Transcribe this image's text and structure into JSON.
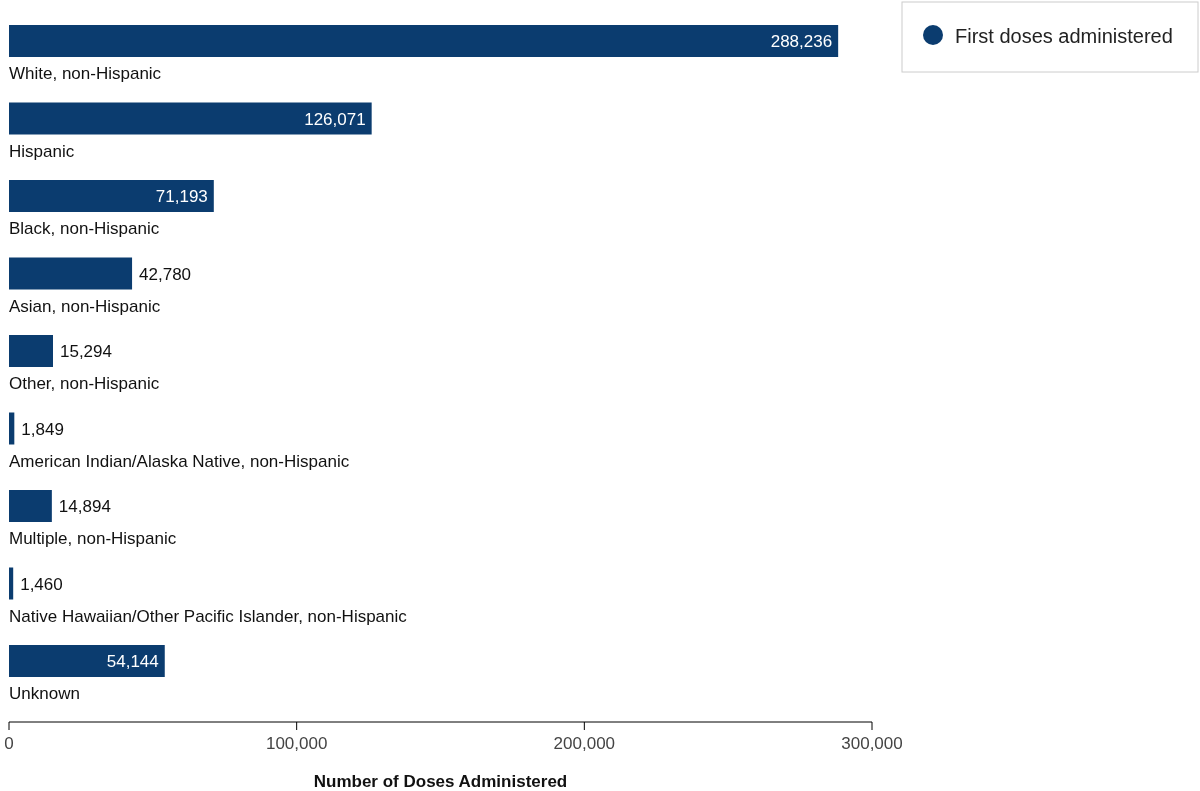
{
  "chart_data": {
    "type": "bar",
    "orientation": "horizontal",
    "xlabel": "Number of Doses Administered",
    "categories": [
      "White, non-Hispanic",
      "Hispanic",
      "Black, non-Hispanic",
      "Asian, non-Hispanic",
      "Other, non-Hispanic",
      "American Indian/Alaska Native, non-Hispanic",
      "Multiple, non-Hispanic",
      "Native Hawaiian/Other Pacific Islander, non-Hispanic",
      "Unknown"
    ],
    "series": [
      {
        "name": "First doses administered",
        "color": "#0b3c6f",
        "values": [
          288236,
          126071,
          71193,
          42780,
          15294,
          1849,
          14894,
          1460,
          54144
        ],
        "value_labels": [
          "288,236",
          "126,071",
          "71,193",
          "42,780",
          "15,294",
          "1,849",
          "14,894",
          "1,460",
          "54,144"
        ]
      }
    ],
    "xlim": [
      0,
      300000
    ],
    "xticks": [
      0,
      {
        "value": 100000,
        "label": "100,000"
      },
      {
        "value": 200000,
        "label": "200,000"
      },
      {
        "value": 300000,
        "label": "300,000"
      }
    ],
    "legend": "top right",
    "marker": "circle",
    "grid": false
  }
}
